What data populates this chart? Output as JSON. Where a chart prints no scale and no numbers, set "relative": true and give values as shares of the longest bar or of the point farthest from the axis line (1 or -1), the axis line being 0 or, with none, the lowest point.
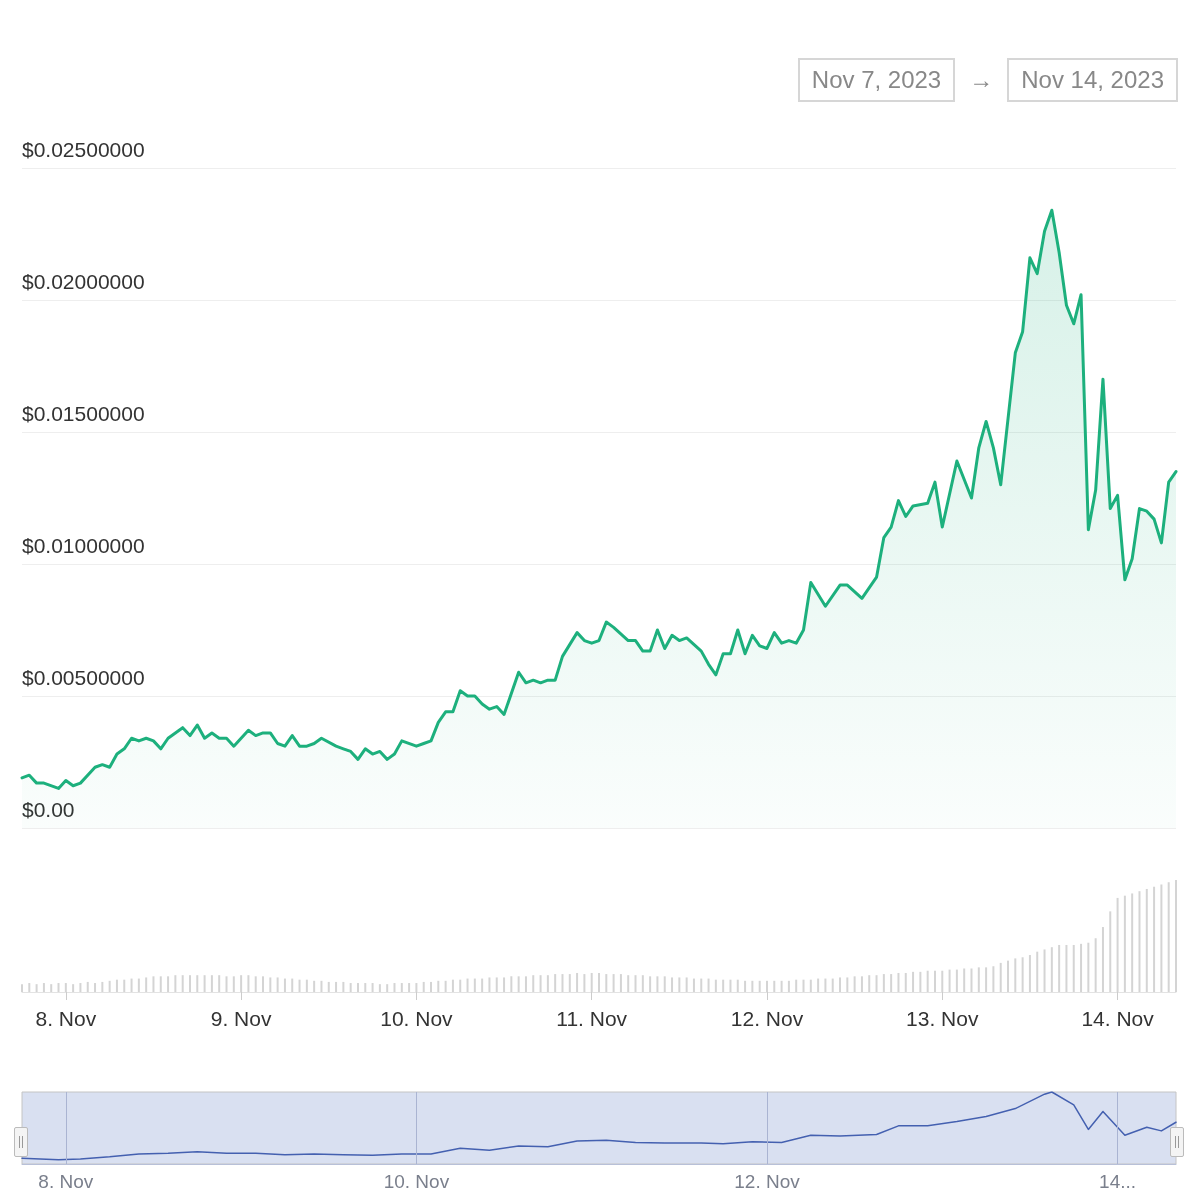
{
  "chart_data": [
    {
      "type": "area",
      "annotations": [
        "Nov 7, 2023",
        "→",
        "Nov 14, 2023"
      ],
      "xlim": [
        "2023-11-07T18:00",
        "2023-11-14T08:00"
      ],
      "ylim": [
        0,
        0.025
      ],
      "yticks": [
        {
          "value": 0,
          "label": "$0.00"
        },
        {
          "value": 0.005,
          "label": "$0.00500000"
        },
        {
          "value": 0.01,
          "label": "$0.01000000"
        },
        {
          "value": 0.015,
          "label": "$0.01500000"
        },
        {
          "value": 0.02,
          "label": "$0.02000000"
        },
        {
          "value": 0.025,
          "label": "$0.02500000"
        }
      ],
      "grid": "y",
      "tick_labels": "y",
      "marker": "none",
      "line_style": "solid",
      "x": [
        "2023-11-07T18:00",
        "2023-11-07T19:00",
        "2023-11-07T20:00",
        "2023-11-07T21:00",
        "2023-11-07T23:00",
        "2023-11-08T00:00",
        "2023-11-08T01:00",
        "2023-11-08T02:00",
        "2023-11-08T04:00",
        "2023-11-08T05:00",
        "2023-11-08T06:00",
        "2023-11-08T07:00",
        "2023-11-08T08:00",
        "2023-11-08T09:00",
        "2023-11-08T10:00",
        "2023-11-08T11:00",
        "2023-11-08T12:00",
        "2023-11-08T13:00",
        "2023-11-08T14:00",
        "2023-11-08T16:00",
        "2023-11-08T17:00",
        "2023-11-08T18:00",
        "2023-11-08T19:00",
        "2023-11-08T20:00",
        "2023-11-08T21:00",
        "2023-11-08T22:00",
        "2023-11-08T23:00",
        "2023-11-09T01:00",
        "2023-11-09T02:00",
        "2023-11-09T03:00",
        "2023-11-09T04:00",
        "2023-11-09T05:00",
        "2023-11-09T06:00",
        "2023-11-09T07:00",
        "2023-11-09T08:00",
        "2023-11-09T09:00",
        "2023-11-09T10:00",
        "2023-11-09T11:00",
        "2023-11-09T13:00",
        "2023-11-09T14:00",
        "2023-11-09T15:00",
        "2023-11-09T16:00",
        "2023-11-09T17:00",
        "2023-11-09T18:00",
        "2023-11-09T19:00",
        "2023-11-09T20:00",
        "2023-11-09T21:00",
        "2023-11-09T22:00",
        "2023-11-10T00:00",
        "2023-11-10T01:00",
        "2023-11-10T02:00",
        "2023-11-10T03:00",
        "2023-11-10T04:00",
        "2023-11-10T05:00",
        "2023-11-10T06:00",
        "2023-11-10T07:00",
        "2023-11-10T08:00",
        "2023-11-10T09:00",
        "2023-11-10T10:00",
        "2023-11-10T11:00",
        "2023-11-10T12:00",
        "2023-11-10T14:00",
        "2023-11-10T15:00",
        "2023-11-10T16:00",
        "2023-11-10T17:00",
        "2023-11-10T18:00",
        "2023-11-10T19:00",
        "2023-11-10T20:00",
        "2023-11-10T22:00",
        "2023-11-10T23:00",
        "2023-11-11T00:00",
        "2023-11-11T01:00",
        "2023-11-11T02:00",
        "2023-11-11T03:00",
        "2023-11-11T05:00",
        "2023-11-11T06:00",
        "2023-11-11T07:00",
        "2023-11-11T08:00",
        "2023-11-11T09:00",
        "2023-11-11T10:00",
        "2023-11-11T11:00",
        "2023-11-11T12:00",
        "2023-11-11T13:00",
        "2023-11-11T15:00",
        "2023-11-11T16:00",
        "2023-11-11T17:00",
        "2023-11-11T18:00",
        "2023-11-11T19:00",
        "2023-11-11T20:00",
        "2023-11-11T21:00",
        "2023-11-11T22:00",
        "2023-11-11T23:00",
        "2023-11-12T00:00",
        "2023-11-12T01:00",
        "2023-11-12T02:00",
        "2023-11-12T03:00",
        "2023-11-12T04:00",
        "2023-11-12T05:00",
        "2023-11-12T06:00",
        "2023-11-12T08:00",
        "2023-11-12T10:00",
        "2023-11-12T11:00",
        "2023-11-12T13:00",
        "2023-11-12T15:00",
        "2023-11-12T16:00",
        "2023-11-12T17:00",
        "2023-11-12T18:00",
        "2023-11-12T19:00",
        "2023-11-12T20:00",
        "2023-11-12T22:00",
        "2023-11-12T23:00",
        "2023-11-13T00:00",
        "2023-11-13T02:00",
        "2023-11-13T04:00",
        "2023-11-13T05:00",
        "2023-11-13T06:00",
        "2023-11-13T07:00",
        "2023-11-13T08:00",
        "2023-11-13T10:00",
        "2023-11-13T11:00",
        "2023-11-13T12:00",
        "2023-11-13T13:00",
        "2023-11-13T14:00",
        "2023-11-13T15:00",
        "2023-11-13T16:00",
        "2023-11-13T17:00",
        "2023-11-13T18:00",
        "2023-11-13T19:00",
        "2023-11-13T20:00",
        "2023-11-13T21:00",
        "2023-11-13T22:00",
        "2023-11-13T23:00",
        "2023-11-14T00:00",
        "2023-11-14T01:00",
        "2023-11-14T02:00",
        "2023-11-14T03:00",
        "2023-11-14T04:00",
        "2023-11-14T05:00",
        "2023-11-14T06:00",
        "2023-11-14T07:00",
        "2023-11-14T08:00"
      ],
      "series": [
        {
          "color": "#1db07d",
          "values": [
            0.0019,
            0.002,
            0.0017,
            0.0017,
            0.0015,
            0.0018,
            0.0016,
            0.0017,
            0.0023,
            0.0024,
            0.0023,
            0.0028,
            0.003,
            0.0034,
            0.0033,
            0.0034,
            0.0033,
            0.003,
            0.0034,
            0.0038,
            0.0035,
            0.0039,
            0.0034,
            0.0036,
            0.0034,
            0.0034,
            0.0031,
            0.0037,
            0.0035,
            0.0036,
            0.0036,
            0.0032,
            0.0031,
            0.0035,
            0.0031,
            0.0031,
            0.0032,
            0.0034,
            0.0031,
            0.003,
            0.0029,
            0.0026,
            0.003,
            0.0028,
            0.0029,
            0.0026,
            0.0028,
            0.0033,
            0.0031,
            0.0032,
            0.0033,
            0.004,
            0.0044,
            0.0044,
            0.0052,
            0.005,
            0.005,
            0.0047,
            0.0045,
            0.0046,
            0.0043,
            0.0059,
            0.0055,
            0.0056,
            0.0055,
            0.0056,
            0.0056,
            0.0065,
            0.0074,
            0.0071,
            0.007,
            0.0071,
            0.0078,
            0.0076,
            0.0071,
            0.0071,
            0.0067,
            0.0067,
            0.0075,
            0.0068,
            0.0073,
            0.0071,
            0.0072,
            0.0067,
            0.0062,
            0.0058,
            0.0066,
            0.0066,
            0.0075,
            0.0066,
            0.0073,
            0.0069,
            0.0068,
            0.0074,
            0.007,
            0.0071,
            0.007,
            0.0075,
            0.0093,
            0.0084,
            0.0092,
            0.0092,
            0.0087,
            0.0095,
            0.011,
            0.0114,
            0.0124,
            0.0118,
            0.0122,
            0.0123,
            0.0131,
            0.0114,
            0.0139,
            0.0125,
            0.0144,
            0.0154,
            0.0144,
            0.013,
            0.018,
            0.0188,
            0.0216,
            0.021,
            0.0226,
            0.0234,
            0.0218,
            0.0198,
            0.0191,
            0.0202,
            0.0113,
            0.0128,
            0.017,
            0.0121,
            0.0126,
            0.0094,
            0.0102,
            0.0121,
            0.012,
            0.0117,
            0.0108,
            0.0131,
            0.0135
          ]
        }
      ]
    },
    {
      "type": "bar",
      "relative": true,
      "tick_labels": "x",
      "xlim": [
        "2023-11-07T18:00",
        "2023-11-14T08:00"
      ],
      "xticks": [
        {
          "value": "2023-11-08",
          "label": "8. Nov"
        },
        {
          "value": "2023-11-09",
          "label": "9. Nov"
        },
        {
          "value": "2023-11-10",
          "label": "10. Nov"
        },
        {
          "value": "2023-11-11",
          "label": "11. Nov"
        },
        {
          "value": "2023-11-12",
          "label": "12. Nov"
        },
        {
          "value": "2023-11-13",
          "label": "13. Nov"
        },
        {
          "value": "2023-11-14",
          "label": "14. Nov"
        }
      ],
      "x": [
        "2023-11-07T18:00",
        "2023-11-07T19:00",
        "2023-11-07T20:00",
        "2023-11-07T21:00",
        "2023-11-07T22:00",
        "2023-11-07T23:00",
        "2023-11-08T00:00",
        "2023-11-08T01:00",
        "2023-11-08T02:00",
        "2023-11-08T03:00",
        "2023-11-08T04:00",
        "2023-11-08T05:00",
        "2023-11-08T06:00",
        "2023-11-08T07:00",
        "2023-11-08T08:00",
        "2023-11-08T09:00",
        "2023-11-08T10:00",
        "2023-11-08T11:00",
        "2023-11-08T12:00",
        "2023-11-08T13:00",
        "2023-11-08T14:00",
        "2023-11-08T15:00",
        "2023-11-08T16:00",
        "2023-11-08T17:00",
        "2023-11-08T18:00",
        "2023-11-08T19:00",
        "2023-11-08T20:00",
        "2023-11-08T21:00",
        "2023-11-08T22:00",
        "2023-11-08T23:00",
        "2023-11-09T00:00",
        "2023-11-09T01:00",
        "2023-11-09T02:00",
        "2023-11-09T03:00",
        "2023-11-09T04:00",
        "2023-11-09T05:00",
        "2023-11-09T06:00",
        "2023-11-09T07:00",
        "2023-11-09T08:00",
        "2023-11-09T09:00",
        "2023-11-09T10:00",
        "2023-11-09T11:00",
        "2023-11-09T12:00",
        "2023-11-09T13:00",
        "2023-11-09T14:00",
        "2023-11-09T15:00",
        "2023-11-09T16:00",
        "2023-11-09T17:00",
        "2023-11-09T18:00",
        "2023-11-09T19:00",
        "2023-11-09T20:00",
        "2023-11-09T21:00",
        "2023-11-09T22:00",
        "2023-11-09T23:00",
        "2023-11-10T00:00",
        "2023-11-10T01:00",
        "2023-11-10T02:00",
        "2023-11-10T03:00",
        "2023-11-10T04:00",
        "2023-11-10T05:00",
        "2023-11-10T06:00",
        "2023-11-10T07:00",
        "2023-11-10T08:00",
        "2023-11-10T09:00",
        "2023-11-10T10:00",
        "2023-11-10T11:00",
        "2023-11-10T12:00",
        "2023-11-10T13:00",
        "2023-11-10T14:00",
        "2023-11-10T15:00",
        "2023-11-10T16:00",
        "2023-11-10T17:00",
        "2023-11-10T18:00",
        "2023-11-10T19:00",
        "2023-11-10T20:00",
        "2023-11-10T21:00",
        "2023-11-10T22:00",
        "2023-11-10T23:00",
        "2023-11-11T00:00",
        "2023-11-11T01:00",
        "2023-11-11T02:00",
        "2023-11-11T03:00",
        "2023-11-11T04:00",
        "2023-11-11T05:00",
        "2023-11-11T06:00",
        "2023-11-11T07:00",
        "2023-11-11T08:00",
        "2023-11-11T09:00",
        "2023-11-11T10:00",
        "2023-11-11T11:00",
        "2023-11-11T12:00",
        "2023-11-11T13:00",
        "2023-11-11T14:00",
        "2023-11-11T15:00",
        "2023-11-11T16:00",
        "2023-11-11T17:00",
        "2023-11-11T18:00",
        "2023-11-11T19:00",
        "2023-11-11T20:00",
        "2023-11-11T21:00",
        "2023-11-11T22:00",
        "2023-11-11T23:00",
        "2023-11-12T00:00",
        "2023-11-12T01:00",
        "2023-11-12T02:00",
        "2023-11-12T03:00",
        "2023-11-12T04:00",
        "2023-11-12T05:00",
        "2023-11-12T06:00",
        "2023-11-12T07:00",
        "2023-11-12T08:00",
        "2023-11-12T09:00",
        "2023-11-12T10:00",
        "2023-11-12T11:00",
        "2023-11-12T12:00",
        "2023-11-12T13:00",
        "2023-11-12T14:00",
        "2023-11-12T15:00",
        "2023-11-12T16:00",
        "2023-11-12T17:00",
        "2023-11-12T18:00",
        "2023-11-12T19:00",
        "2023-11-12T20:00",
        "2023-11-12T21:00",
        "2023-11-12T22:00",
        "2023-11-12T23:00",
        "2023-11-13T00:00",
        "2023-11-13T01:00",
        "2023-11-13T02:00",
        "2023-11-13T03:00",
        "2023-11-13T04:00",
        "2023-11-13T05:00",
        "2023-11-13T06:00",
        "2023-11-13T07:00",
        "2023-11-13T08:00",
        "2023-11-13T09:00",
        "2023-11-13T10:00",
        "2023-11-13T11:00",
        "2023-11-13T12:00",
        "2023-11-13T13:00",
        "2023-11-13T14:00",
        "2023-11-13T15:00",
        "2023-11-13T16:00",
        "2023-11-13T17:00",
        "2023-11-13T18:00",
        "2023-11-13T19:00",
        "2023-11-13T20:00",
        "2023-11-13T21:00",
        "2023-11-13T22:00",
        "2023-11-13T23:00",
        "2023-11-14T00:00",
        "2023-11-14T01:00",
        "2023-11-14T02:00",
        "2023-11-14T03:00",
        "2023-11-14T04:00",
        "2023-11-14T05:00",
        "2023-11-14T06:00",
        "2023-11-14T07:00",
        "2023-11-14T08:00"
      ],
      "series": [
        {
          "color": "#d4d4d4",
          "values": [
            0.07,
            0.08,
            0.07,
            0.08,
            0.07,
            0.08,
            0.08,
            0.07,
            0.08,
            0.09,
            0.08,
            0.09,
            0.1,
            0.11,
            0.11,
            0.12,
            0.12,
            0.13,
            0.14,
            0.14,
            0.14,
            0.15,
            0.15,
            0.15,
            0.15,
            0.15,
            0.15,
            0.15,
            0.14,
            0.14,
            0.15,
            0.15,
            0.14,
            0.14,
            0.13,
            0.13,
            0.12,
            0.12,
            0.11,
            0.11,
            0.1,
            0.1,
            0.09,
            0.09,
            0.09,
            0.08,
            0.08,
            0.08,
            0.08,
            0.07,
            0.07,
            0.08,
            0.08,
            0.08,
            0.08,
            0.09,
            0.09,
            0.1,
            0.1,
            0.11,
            0.11,
            0.12,
            0.12,
            0.12,
            0.13,
            0.13,
            0.13,
            0.14,
            0.14,
            0.14,
            0.15,
            0.15,
            0.15,
            0.16,
            0.16,
            0.16,
            0.17,
            0.16,
            0.17,
            0.17,
            0.16,
            0.16,
            0.16,
            0.15,
            0.15,
            0.15,
            0.14,
            0.14,
            0.14,
            0.13,
            0.13,
            0.13,
            0.12,
            0.12,
            0.12,
            0.11,
            0.11,
            0.11,
            0.11,
            0.1,
            0.1,
            0.1,
            0.1,
            0.1,
            0.1,
            0.1,
            0.11,
            0.11,
            0.11,
            0.12,
            0.12,
            0.12,
            0.13,
            0.13,
            0.14,
            0.14,
            0.15,
            0.15,
            0.16,
            0.16,
            0.17,
            0.17,
            0.18,
            0.18,
            0.19,
            0.19,
            0.19,
            0.2,
            0.2,
            0.21,
            0.21,
            0.22,
            0.22,
            0.23,
            0.26,
            0.28,
            0.3,
            0.31,
            0.33,
            0.36,
            0.38,
            0.4,
            0.42,
            0.42,
            0.42,
            0.43,
            0.44,
            0.48,
            0.58,
            0.72,
            0.84,
            0.86,
            0.88,
            0.9,
            0.92,
            0.94,
            0.96,
            0.98,
            1
          ]
        }
      ]
    },
    {
      "type": "line",
      "relative": true,
      "tick_labels": "x",
      "grid": "x",
      "marker": "none",
      "line_style": "solid",
      "xlim": [
        "2023-11-07T18:00",
        "2023-11-14T08:00"
      ],
      "xticks": [
        {
          "value": "2023-11-08",
          "label": "8. Nov"
        },
        {
          "value": "2023-11-10",
          "label": "10. Nov"
        },
        {
          "value": "2023-11-12",
          "label": "12. Nov"
        },
        {
          "value": "2023-11-14",
          "label": "14..."
        }
      ],
      "x": [
        "2023-11-07T18:00",
        "2023-11-07T23:00",
        "2023-11-08T02:00",
        "2023-11-08T06:00",
        "2023-11-08T10:00",
        "2023-11-08T14:00",
        "2023-11-08T18:00",
        "2023-11-08T22:00",
        "2023-11-09T02:00",
        "2023-11-09T06:00",
        "2023-11-09T10:00",
        "2023-11-09T14:00",
        "2023-11-09T18:00",
        "2023-11-09T22:00",
        "2023-11-10T02:00",
        "2023-11-10T06:00",
        "2023-11-10T10:00",
        "2023-11-10T14:00",
        "2023-11-10T18:00",
        "2023-11-10T22:00",
        "2023-11-11T02:00",
        "2023-11-11T06:00",
        "2023-11-11T10:00",
        "2023-11-11T15:00",
        "2023-11-11T18:00",
        "2023-11-11T22:00",
        "2023-11-12T02:00",
        "2023-11-12T06:00",
        "2023-11-12T10:00",
        "2023-11-12T15:00",
        "2023-11-12T18:00",
        "2023-11-12T22:00",
        "2023-11-13T02:00",
        "2023-11-13T06:00",
        "2023-11-13T10:00",
        "2023-11-13T14:00",
        "2023-11-13T15:00",
        "2023-11-13T18:00",
        "2023-11-13T20:00",
        "2023-11-13T22:00",
        "2023-11-14T01:00",
        "2023-11-14T04:00",
        "2023-11-14T06:00",
        "2023-11-14T08:00"
      ],
      "series": [
        {
          "color": "#4460b0",
          "values": [
            0.08,
            0.06,
            0.07,
            0.1,
            0.14,
            0.15,
            0.17,
            0.15,
            0.15,
            0.13,
            0.14,
            0.13,
            0.12,
            0.14,
            0.14,
            0.22,
            0.19,
            0.25,
            0.24,
            0.32,
            0.33,
            0.3,
            0.29,
            0.29,
            0.28,
            0.31,
            0.3,
            0.4,
            0.39,
            0.41,
            0.53,
            0.53,
            0.59,
            0.66,
            0.77,
            0.97,
            1,
            0.82,
            0.48,
            0.73,
            0.4,
            0.51,
            0.46,
            0.58
          ]
        }
      ]
    }
  ]
}
